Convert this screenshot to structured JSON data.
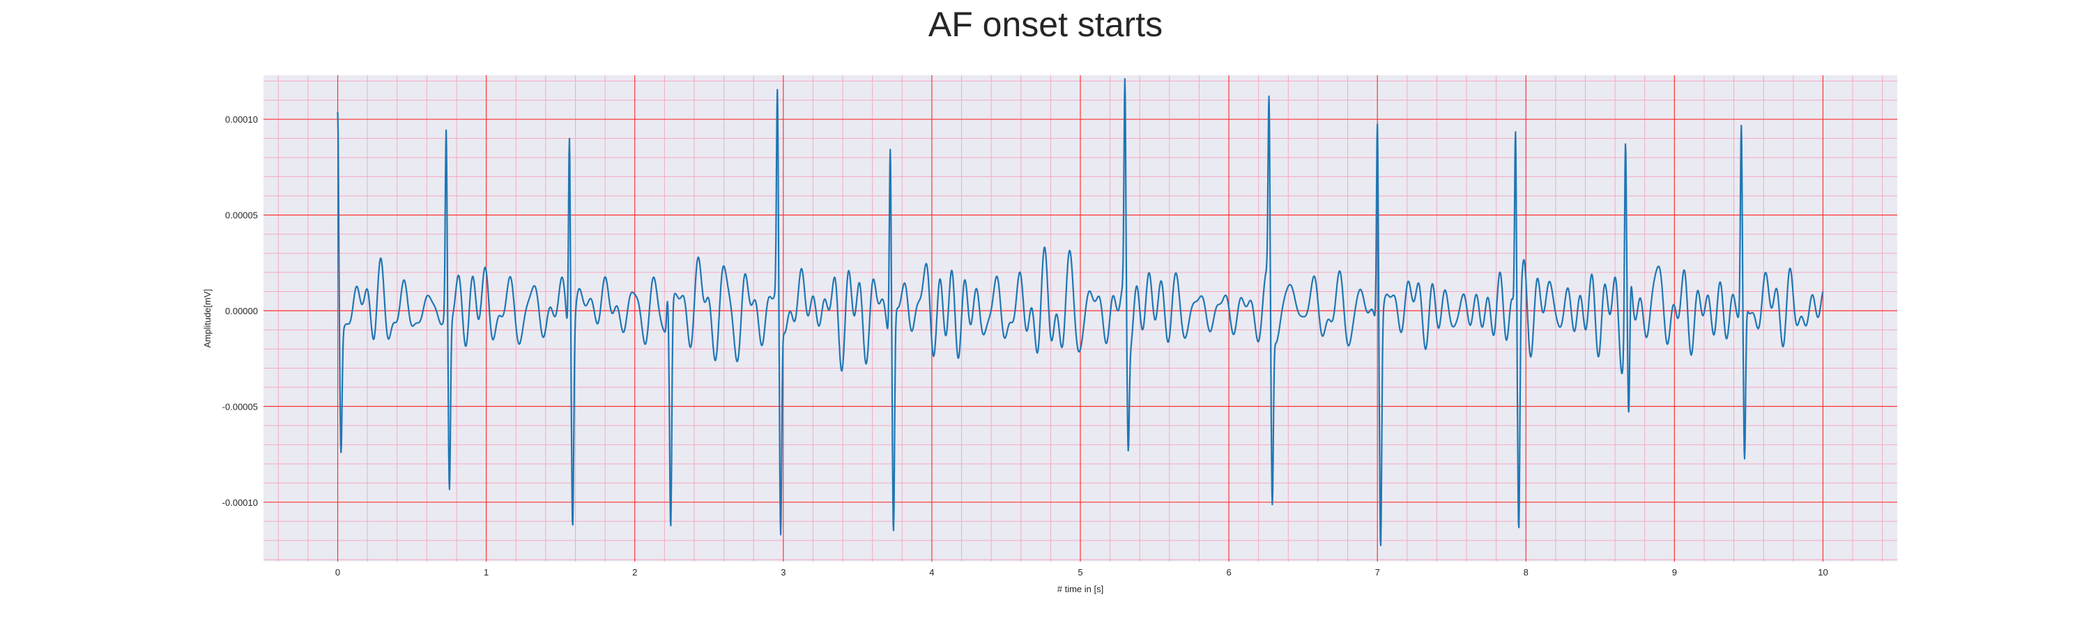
{
  "chart_data": {
    "type": "line",
    "title": "AF onset starts",
    "xlabel": "# time in [s]",
    "ylabel": "Amplitude[mV]",
    "xlim": [
      -0.5,
      10.5
    ],
    "ylim": [
      -0.000131,
      0.000123
    ],
    "x_ticks": [
      0,
      1,
      2,
      3,
      4,
      5,
      6,
      7,
      8,
      9,
      10
    ],
    "x_tick_labels": [
      "0",
      "1",
      "2",
      "3",
      "4",
      "5",
      "6",
      "7",
      "8",
      "9",
      "10"
    ],
    "y_ticks": [
      0.0001,
      5e-05,
      0.0,
      -5e-05,
      -0.0001
    ],
    "y_tick_labels": [
      "0.00010",
      "0.00005",
      "0.00000",
      "-0.00005",
      "-0.00010"
    ],
    "grid": true,
    "background_color": "#EAEAF2",
    "grid_major_color": "#FF3333",
    "grid_minor_color": "#F4AAC0",
    "series": [
      {
        "color": "#1F77B4",
        "beats": [
          {
            "t": 0.0,
            "r": 9.4e-05,
            "s": -6.8e-05
          },
          {
            "t": 0.73,
            "r": 9.7e-05,
            "s": -9.1e-05
          },
          {
            "t": 1.56,
            "r": 0.00011,
            "s": -9.7e-05
          },
          {
            "t": 2.22,
            "r": 1.6e-05,
            "s": -0.000112
          },
          {
            "t": 2.96,
            "r": 0.000106,
            "s": -0.000118
          },
          {
            "t": 3.72,
            "r": 9.8e-05,
            "s": -0.000112
          },
          {
            "t": 5.3,
            "r": 0.000112,
            "s": -6.1e-05
          },
          {
            "t": 6.27,
            "r": 9.8e-05,
            "s": -9.6e-05
          },
          {
            "t": 7.0,
            "r": 0.000109,
            "s": -0.000115
          },
          {
            "t": 7.93,
            "r": 0.000103,
            "s": -0.000104
          },
          {
            "t": 8.67,
            "r": 9.2e-05,
            "s": -7.8e-05
          },
          {
            "t": 9.45,
            "r": 9.6e-05,
            "s": -8.3e-05
          }
        ],
        "x_range": [
          0.0,
          10.0
        ],
        "baseline": 0.0
      }
    ]
  }
}
